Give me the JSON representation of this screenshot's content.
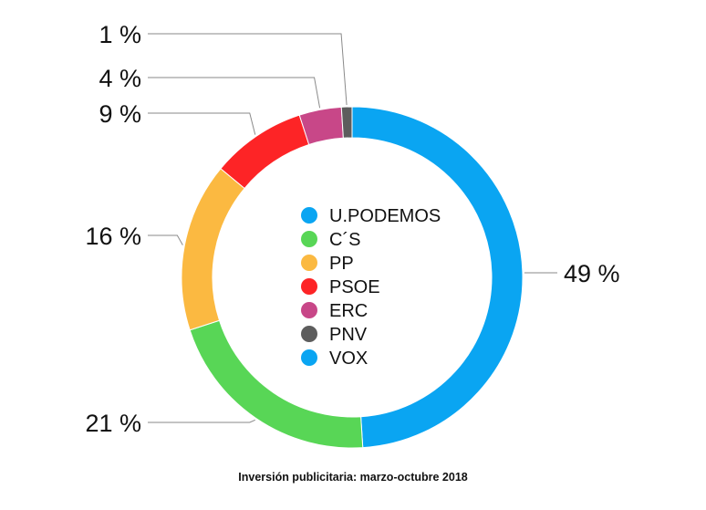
{
  "caption": "Inversión publicitaria: marzo-octubre 2018",
  "chart_data": {
    "type": "pie",
    "title": "",
    "series": [
      {
        "name": "U.PODEMOS",
        "value": 49,
        "label": "49 %",
        "color": "#0aa5f2"
      },
      {
        "name": "C´S",
        "value": 21,
        "label": "21 %",
        "color": "#58d656"
      },
      {
        "name": "PP",
        "value": 16,
        "label": "16 %",
        "color": "#fbb941"
      },
      {
        "name": "PSOE",
        "value": 9,
        "label": "9 %",
        "color": "#fd2426"
      },
      {
        "name": "ERC",
        "value": 4,
        "label": "4 %",
        "color": "#c84788"
      },
      {
        "name": "PNV",
        "value": 1,
        "label": "1 %",
        "color": "#5d5d5d"
      }
    ],
    "legend": [
      {
        "name": "U.PODEMOS",
        "color": "#0aa5f2"
      },
      {
        "name": "C´S",
        "color": "#58d656"
      },
      {
        "name": "PP",
        "color": "#fbb941"
      },
      {
        "name": "PSOE",
        "color": "#fd2426"
      },
      {
        "name": "ERC",
        "color": "#c84788"
      },
      {
        "name": "PNV",
        "color": "#5d5d5d"
      },
      {
        "name": "VOX",
        "color": "#0aa5f2"
      }
    ],
    "legend_position": "center",
    "style": "donut"
  }
}
